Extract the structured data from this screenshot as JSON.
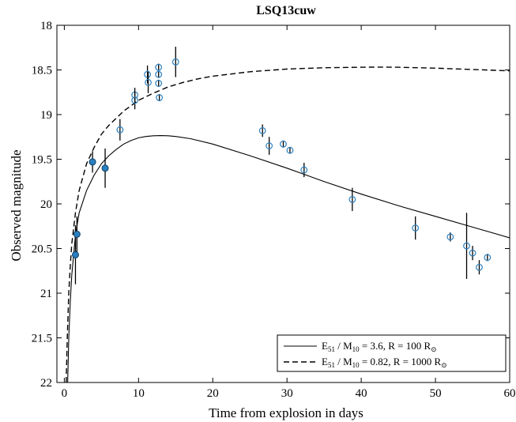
{
  "chart_data": {
    "type": "scatter",
    "title": "LSQ13cuw",
    "xlabel": "Time from explosion in days",
    "ylabel": "Observed magnitude",
    "xlim": [
      -1,
      60
    ],
    "ylim": [
      18,
      22
    ],
    "y_inverted": true,
    "grid": false,
    "x_ticks": [
      0,
      10,
      20,
      30,
      40,
      50,
      60
    ],
    "y_ticks": [
      18,
      18.5,
      19,
      19.5,
      20,
      20.5,
      21,
      21.5,
      22
    ],
    "x_tick_labels": [
      "0",
      "10",
      "20",
      "30",
      "40",
      "50",
      "60"
    ],
    "y_tick_labels": [
      "18",
      "18.5",
      "19",
      "19.5",
      "20",
      "20.5",
      "21",
      "21.5",
      "22"
    ],
    "legend_position": "bottom-right",
    "legend": [
      {
        "style": "solid",
        "main": "E",
        "sub1": "51",
        "mid": " / M",
        "sub2": "10",
        "rest": " = 3.6, R = 100 R",
        "sub3": "⊙"
      },
      {
        "style": "dashed",
        "main": "E",
        "sub1": "51",
        "mid": " / M",
        "sub2": "10",
        "rest": " = 0.82, R = 1000 R",
        "sub3": "⊙"
      }
    ],
    "series": [
      {
        "marker": "filled-circle",
        "color": "#2a7fbf",
        "points": [
          {
            "x": 1.5,
            "y": 20.57,
            "err": 0.33
          },
          {
            "x": 1.7,
            "y": 20.34,
            "err": 0.2
          },
          {
            "x": 3.8,
            "y": 19.53,
            "err": 0.12
          },
          {
            "x": 5.5,
            "y": 19.6,
            "err": 0.22
          }
        ]
      },
      {
        "marker": "open-circle",
        "color": "#2a7fbf",
        "points": [
          {
            "x": 7.5,
            "y": 19.17,
            "err": 0.12
          },
          {
            "x": 9.5,
            "y": 18.78,
            "err": 0.08
          },
          {
            "x": 9.5,
            "y": 18.84,
            "err": 0.1
          },
          {
            "x": 11.2,
            "y": 18.55,
            "err": 0.1
          },
          {
            "x": 11.3,
            "y": 18.64,
            "err": 0.12
          },
          {
            "x": 12.7,
            "y": 18.47,
            "err": 0.04
          },
          {
            "x": 12.7,
            "y": 18.55,
            "err": 0.04
          },
          {
            "x": 12.7,
            "y": 18.65,
            "err": 0.04
          },
          {
            "x": 12.8,
            "y": 18.81,
            "err": 0.04
          },
          {
            "x": 15.0,
            "y": 18.41,
            "err": 0.17
          },
          {
            "x": 26.7,
            "y": 19.18,
            "err": 0.07
          },
          {
            "x": 27.6,
            "y": 19.35,
            "err": 0.1
          },
          {
            "x": 29.5,
            "y": 19.33,
            "err": 0.04
          },
          {
            "x": 30.4,
            "y": 19.4,
            "err": 0.03
          },
          {
            "x": 32.3,
            "y": 19.62,
            "err": 0.08
          },
          {
            "x": 38.8,
            "y": 19.95,
            "err": 0.13
          },
          {
            "x": 47.3,
            "y": 20.27,
            "err": 0.13
          },
          {
            "x": 52.0,
            "y": 20.37,
            "err": 0.05
          },
          {
            "x": 54.2,
            "y": 20.47,
            "err": 0.37
          },
          {
            "x": 55.0,
            "y": 20.55,
            "err": 0.08
          },
          {
            "x": 55.9,
            "y": 20.71,
            "err": 0.08
          },
          {
            "x": 57.0,
            "y": 20.6,
            "err": 0.04
          }
        ]
      }
    ],
    "models": [
      {
        "style": "solid",
        "x": [
          0.45,
          0.6,
          0.8,
          1.0,
          1.5,
          2,
          3,
          4,
          5,
          6,
          7,
          8,
          9,
          10,
          11,
          12,
          13,
          14,
          15,
          17,
          20,
          25,
          30,
          35,
          40,
          45,
          50,
          55,
          60
        ],
        "y": [
          22.0,
          21.5,
          21.1,
          20.8,
          20.35,
          20.1,
          19.85,
          19.68,
          19.55,
          19.46,
          19.39,
          19.33,
          19.29,
          19.26,
          19.245,
          19.237,
          19.235,
          19.237,
          19.245,
          19.27,
          19.33,
          19.46,
          19.6,
          19.75,
          19.89,
          20.02,
          20.14,
          20.26,
          20.38
        ]
      },
      {
        "style": "dashed",
        "x": [
          0.25,
          0.4,
          0.6,
          0.8,
          1.0,
          1.5,
          2,
          3,
          4,
          5,
          6,
          7,
          8,
          9,
          10,
          12,
          14,
          16,
          18,
          20,
          25,
          30,
          35,
          40,
          42,
          45,
          50,
          55,
          60
        ],
        "y": [
          22.0,
          21.5,
          21.0,
          20.7,
          20.45,
          20.1,
          19.85,
          19.55,
          19.37,
          19.22,
          19.12,
          19.04,
          18.96,
          18.9,
          18.84,
          18.76,
          18.69,
          18.64,
          18.6,
          18.57,
          18.52,
          18.49,
          18.475,
          18.47,
          18.468,
          18.47,
          18.48,
          18.495,
          18.51
        ]
      }
    ]
  }
}
